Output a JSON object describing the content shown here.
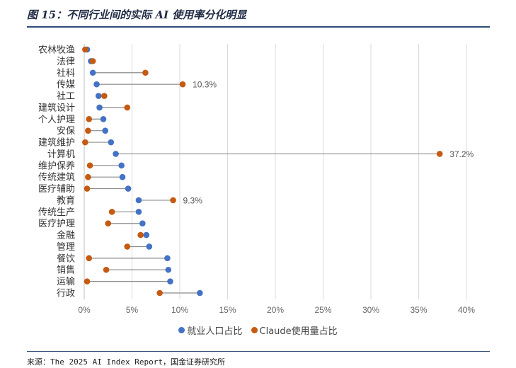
{
  "figure_title": "图 15：不同行业间的实际 AI 使用率分化明显",
  "source": "来源：The 2025 AI Index Report，国金证券研究所",
  "colors": {
    "employment": "#4472c4",
    "claude": "#c55a11",
    "connector": "#8c8c8c",
    "grid": "#d9d9d9"
  },
  "chart_data": {
    "type": "dumbbell",
    "xlim": [
      0,
      40
    ],
    "x_ticks": [
      "0%",
      "5%",
      "10%",
      "15%",
      "20%",
      "25%",
      "30%",
      "35%",
      "40%"
    ],
    "categories": [
      "农林牧渔",
      "法律",
      "社科",
      "传媒",
      "社工",
      "建筑设计",
      "个人护理",
      "安保",
      "建筑维护",
      "计算机",
      "维护保养",
      "传统建筑",
      "医疗辅助",
      "教育",
      "传统生产",
      "医疗护理",
      "金融",
      "管理",
      "餐饮",
      "销售",
      "运输",
      "行政"
    ],
    "series": [
      {
        "name": "就业人口占比",
        "color_key": "employment",
        "values": [
          0.3,
          0.7,
          0.9,
          1.3,
          1.5,
          1.6,
          2.0,
          2.2,
          2.8,
          3.3,
          3.9,
          4.0,
          4.6,
          5.7,
          5.7,
          6.1,
          6.5,
          6.8,
          8.7,
          8.8,
          9.0,
          12.1
        ]
      },
      {
        "name": "Claude使用量占比",
        "color_key": "claude",
        "values": [
          0.1,
          0.9,
          6.4,
          10.3,
          2.1,
          4.5,
          0.5,
          0.4,
          0.1,
          37.2,
          0.6,
          0.4,
          0.3,
          9.3,
          2.9,
          2.5,
          5.9,
          4.5,
          0.5,
          2.3,
          0.3,
          7.9
        ]
      }
    ],
    "annotations": [
      {
        "category": "传媒",
        "text": "10.3%",
        "value": 10.3
      },
      {
        "category": "计算机",
        "text": "37.2%",
        "value": 37.2
      },
      {
        "category": "教育",
        "text": "9.3%",
        "value": 9.3
      }
    ],
    "legend_position": "bottom",
    "grid": true
  }
}
